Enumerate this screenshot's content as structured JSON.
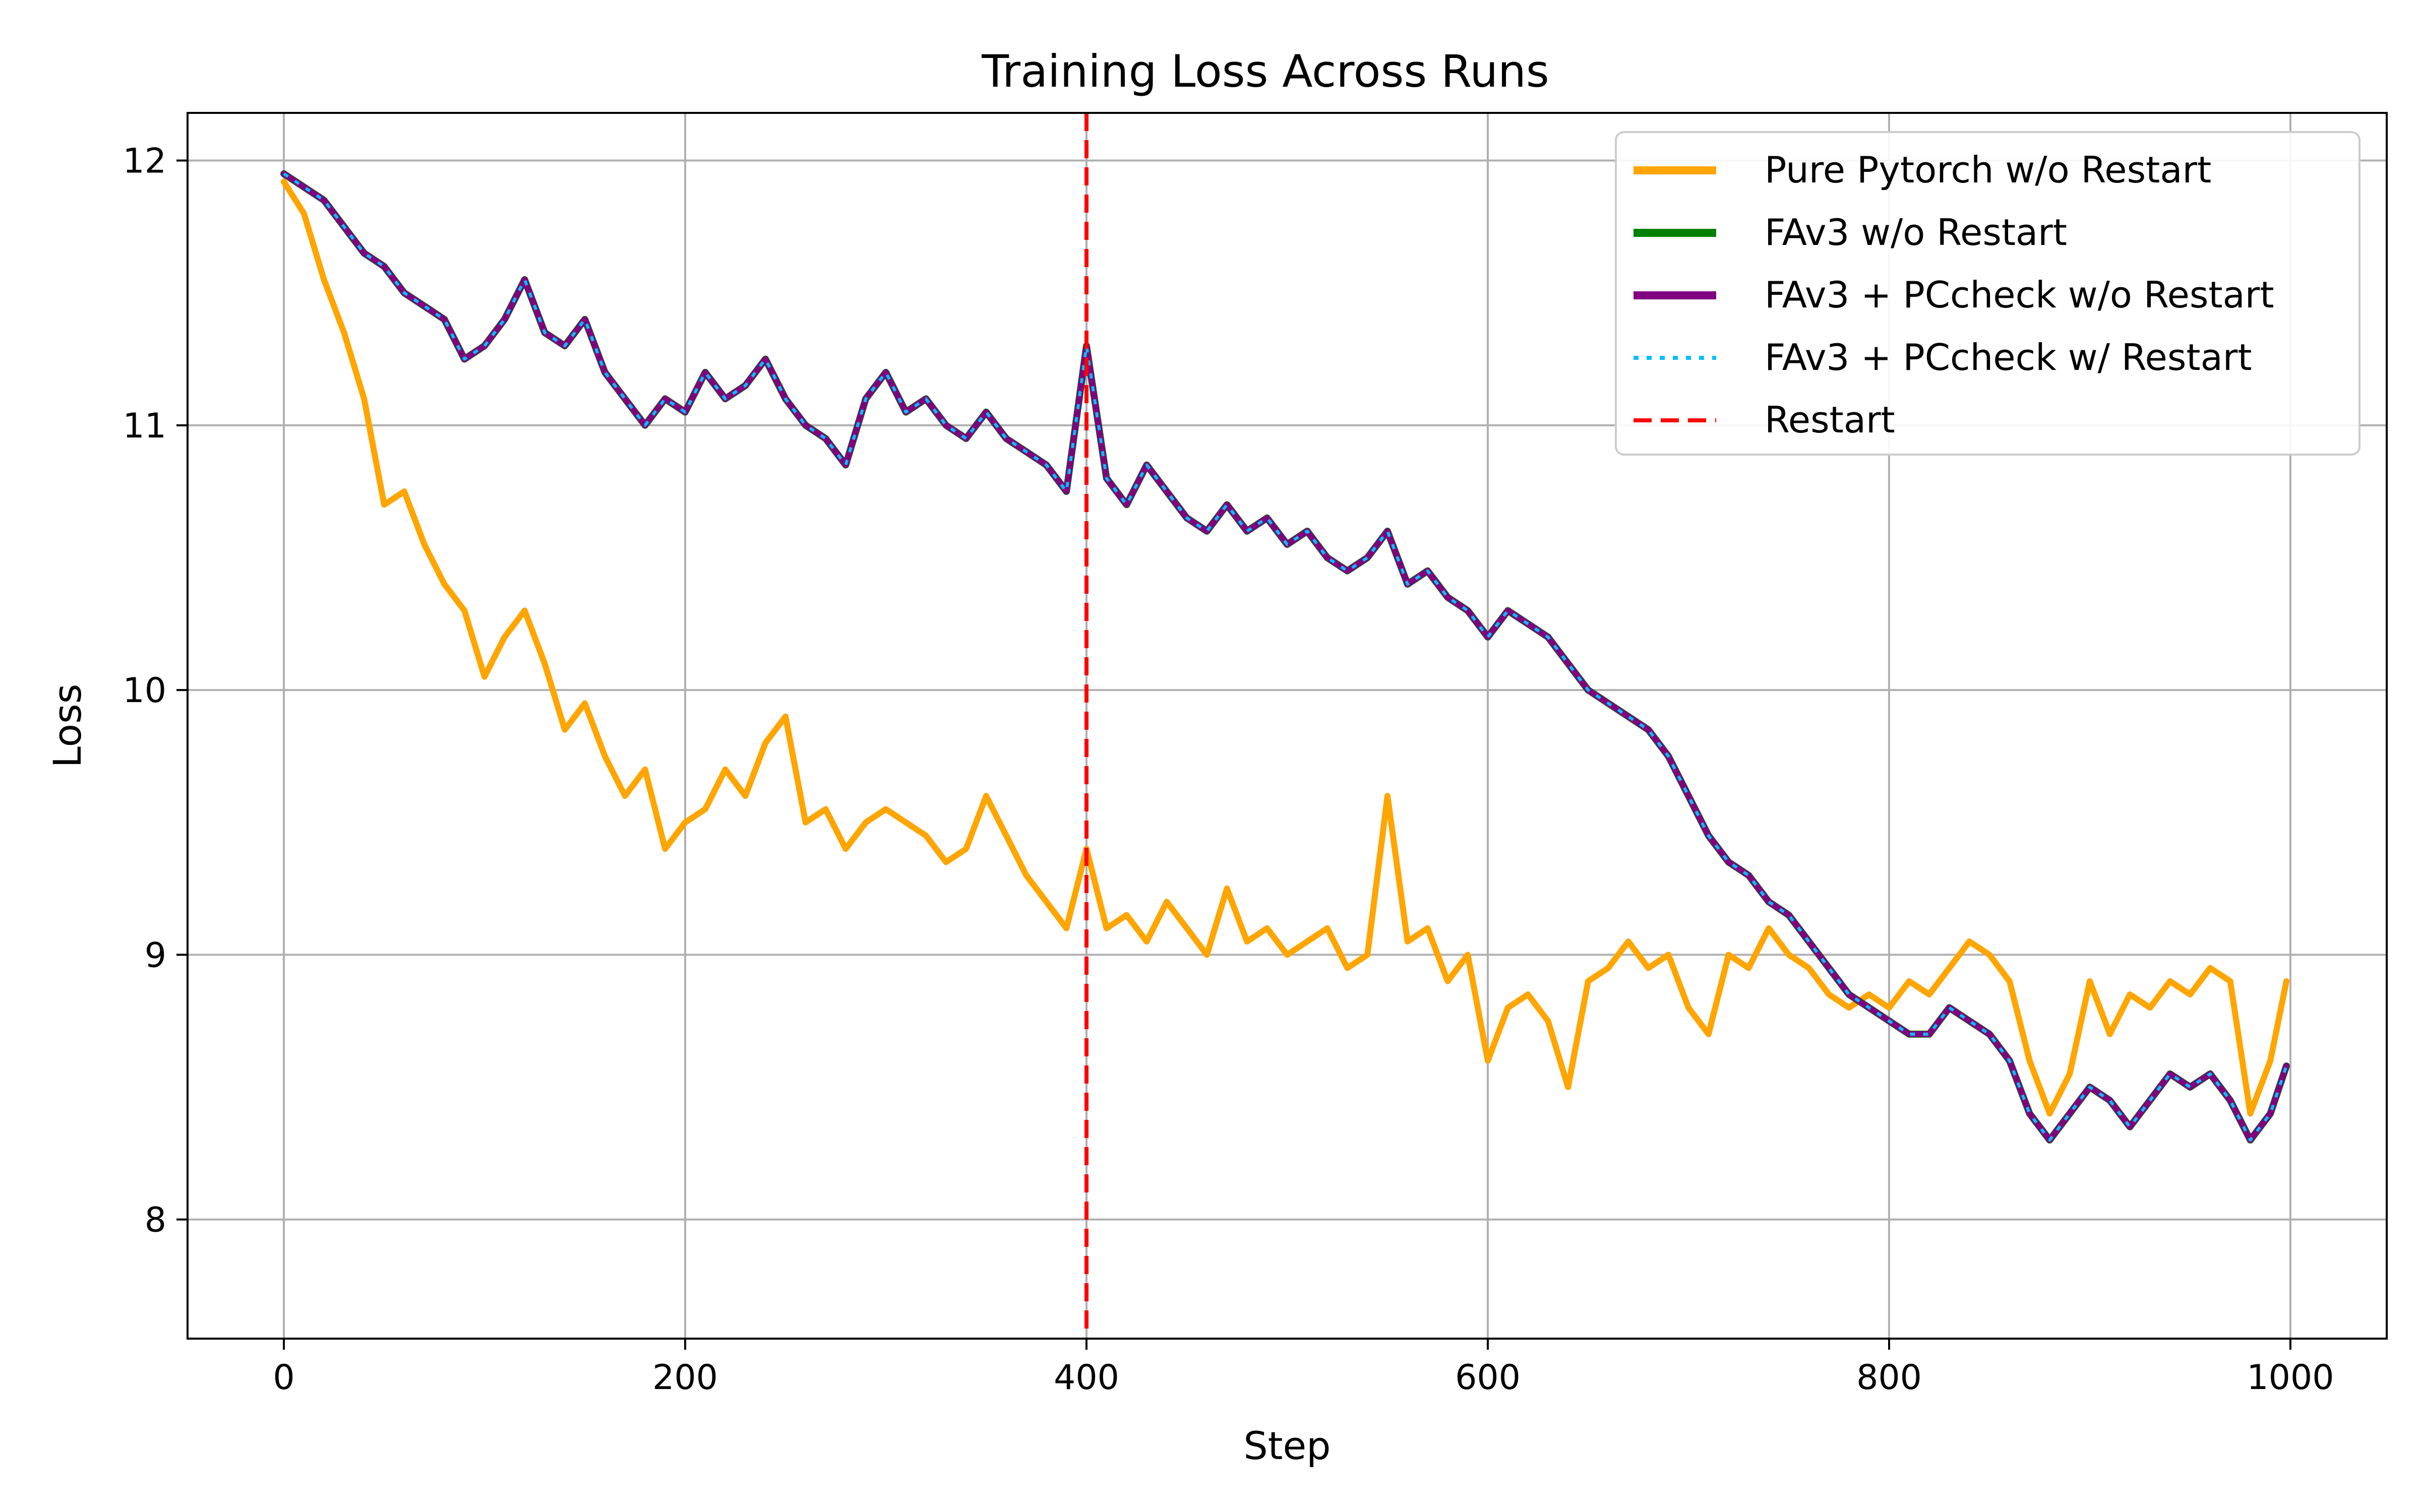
{
  "chart_data": {
    "type": "line",
    "title": "Training Loss Across Runs",
    "xlabel": "Step",
    "ylabel": "Loss",
    "xlim": [
      -48,
      1048
    ],
    "ylim": [
      7.55,
      12.18
    ],
    "xticks": [
      0,
      200,
      400,
      600,
      800,
      1000
    ],
    "yticks": [
      8,
      9,
      10,
      11,
      12
    ],
    "grid": true,
    "legend_position": "upper right",
    "series": [
      {
        "name": "Pure Pytorch w/o Restart",
        "color": "#FFA500",
        "style": "solid",
        "x": [
          0,
          10,
          20,
          30,
          40,
          50,
          60,
          70,
          80,
          90,
          100,
          110,
          120,
          130,
          140,
          150,
          160,
          170,
          180,
          190,
          200,
          210,
          220,
          230,
          240,
          250,
          260,
          270,
          280,
          290,
          300,
          310,
          320,
          330,
          340,
          350,
          360,
          370,
          380,
          390,
          400,
          410,
          420,
          430,
          440,
          450,
          460,
          470,
          480,
          490,
          500,
          510,
          520,
          530,
          540,
          550,
          560,
          570,
          580,
          590,
          600,
          610,
          620,
          630,
          640,
          650,
          660,
          670,
          680,
          690,
          700,
          710,
          720,
          730,
          740,
          750,
          760,
          770,
          780,
          790,
          800,
          810,
          820,
          830,
          840,
          850,
          860,
          870,
          880,
          890,
          900,
          910,
          920,
          930,
          940,
          950,
          960,
          970,
          980,
          990,
          998
        ],
        "y": [
          11.92,
          11.8,
          11.55,
          11.35,
          11.1,
          10.7,
          10.75,
          10.55,
          10.4,
          10.3,
          10.05,
          10.2,
          10.3,
          10.1,
          9.85,
          9.95,
          9.75,
          9.6,
          9.7,
          9.4,
          9.5,
          9.55,
          9.7,
          9.6,
          9.8,
          9.9,
          9.5,
          9.55,
          9.4,
          9.5,
          9.55,
          9.5,
          9.45,
          9.35,
          9.4,
          9.6,
          9.45,
          9.3,
          9.2,
          9.1,
          9.4,
          9.1,
          9.15,
          9.05,
          9.2,
          9.1,
          9.0,
          9.25,
          9.05,
          9.1,
          9.0,
          9.05,
          9.1,
          8.95,
          9.0,
          9.6,
          9.05,
          9.1,
          8.9,
          9.0,
          8.6,
          8.8,
          8.85,
          8.75,
          8.5,
          8.9,
          8.95,
          9.05,
          8.95,
          9.0,
          8.8,
          8.7,
          9.0,
          8.95,
          9.1,
          9.0,
          8.95,
          8.85,
          8.8,
          8.85,
          8.8,
          8.9,
          8.85,
          8.95,
          9.05,
          9.0,
          8.9,
          8.6,
          8.4,
          8.55,
          8.9,
          8.7,
          8.85,
          8.8,
          8.9,
          8.85,
          8.95,
          8.9,
          8.4,
          8.6,
          8.9
        ]
      },
      {
        "name": "FAv3 w/o Restart",
        "color": "#008000",
        "style": "solid",
        "x": [
          0,
          10,
          20,
          30,
          40,
          50,
          60,
          70,
          80,
          90,
          100,
          110,
          120,
          130,
          140,
          150,
          160,
          170,
          180,
          190,
          200,
          210,
          220,
          230,
          240,
          250,
          260,
          270,
          280,
          290,
          300,
          310,
          320,
          330,
          340,
          350,
          360,
          370,
          380,
          390,
          400,
          410,
          420,
          430,
          440,
          450,
          460,
          470,
          480,
          490,
          500,
          510,
          520,
          530,
          540,
          550,
          560,
          570,
          580,
          590,
          600,
          610,
          620,
          630,
          640,
          650,
          660,
          670,
          680,
          690,
          700,
          710,
          720,
          730,
          740,
          750,
          760,
          770,
          780,
          790,
          800,
          810,
          820,
          830,
          840,
          850,
          860,
          870,
          880,
          890,
          900,
          910,
          920,
          930,
          940,
          950,
          960,
          970,
          980,
          990,
          998
        ],
        "y": [
          11.95,
          11.9,
          11.85,
          11.75,
          11.65,
          11.6,
          11.5,
          11.45,
          11.4,
          11.25,
          11.3,
          11.4,
          11.55,
          11.35,
          11.3,
          11.4,
          11.2,
          11.1,
          11.0,
          11.1,
          11.05,
          11.2,
          11.1,
          11.15,
          11.25,
          11.1,
          11.0,
          10.95,
          10.85,
          11.1,
          11.2,
          11.05,
          11.1,
          11.0,
          10.95,
          11.05,
          10.95,
          10.9,
          10.85,
          10.75,
          11.3,
          10.8,
          10.7,
          10.85,
          10.75,
          10.65,
          10.6,
          10.7,
          10.6,
          10.65,
          10.55,
          10.6,
          10.5,
          10.45,
          10.5,
          10.6,
          10.4,
          10.45,
          10.35,
          10.3,
          10.2,
          10.3,
          10.25,
          10.2,
          10.1,
          10.0,
          9.95,
          9.9,
          9.85,
          9.75,
          9.6,
          9.45,
          9.35,
          9.3,
          9.2,
          9.15,
          9.05,
          8.95,
          8.85,
          8.8,
          8.75,
          8.7,
          8.7,
          8.8,
          8.75,
          8.7,
          8.6,
          8.4,
          8.3,
          8.4,
          8.5,
          8.45,
          8.35,
          8.45,
          8.55,
          8.5,
          8.55,
          8.45,
          8.3,
          8.4,
          8.58
        ]
      },
      {
        "name": "FAv3 + PCcheck w/o Restart",
        "color": "#800080",
        "style": "solid",
        "x": [
          0,
          10,
          20,
          30,
          40,
          50,
          60,
          70,
          80,
          90,
          100,
          110,
          120,
          130,
          140,
          150,
          160,
          170,
          180,
          190,
          200,
          210,
          220,
          230,
          240,
          250,
          260,
          270,
          280,
          290,
          300,
          310,
          320,
          330,
          340,
          350,
          360,
          370,
          380,
          390,
          400,
          410,
          420,
          430,
          440,
          450,
          460,
          470,
          480,
          490,
          500,
          510,
          520,
          530,
          540,
          550,
          560,
          570,
          580,
          590,
          600,
          610,
          620,
          630,
          640,
          650,
          660,
          670,
          680,
          690,
          700,
          710,
          720,
          730,
          740,
          750,
          760,
          770,
          780,
          790,
          800,
          810,
          820,
          830,
          840,
          850,
          860,
          870,
          880,
          890,
          900,
          910,
          920,
          930,
          940,
          950,
          960,
          970,
          980,
          990,
          998
        ],
        "y": [
          11.95,
          11.9,
          11.85,
          11.75,
          11.65,
          11.6,
          11.5,
          11.45,
          11.4,
          11.25,
          11.3,
          11.4,
          11.55,
          11.35,
          11.3,
          11.4,
          11.2,
          11.1,
          11.0,
          11.1,
          11.05,
          11.2,
          11.1,
          11.15,
          11.25,
          11.1,
          11.0,
          10.95,
          10.85,
          11.1,
          11.2,
          11.05,
          11.1,
          11.0,
          10.95,
          11.05,
          10.95,
          10.9,
          10.85,
          10.75,
          11.3,
          10.8,
          10.7,
          10.85,
          10.75,
          10.65,
          10.6,
          10.7,
          10.6,
          10.65,
          10.55,
          10.6,
          10.5,
          10.45,
          10.5,
          10.6,
          10.4,
          10.45,
          10.35,
          10.3,
          10.2,
          10.3,
          10.25,
          10.2,
          10.1,
          10.0,
          9.95,
          9.9,
          9.85,
          9.75,
          9.6,
          9.45,
          9.35,
          9.3,
          9.2,
          9.15,
          9.05,
          8.95,
          8.85,
          8.8,
          8.75,
          8.7,
          8.7,
          8.8,
          8.75,
          8.7,
          8.6,
          8.4,
          8.3,
          8.4,
          8.5,
          8.45,
          8.35,
          8.45,
          8.55,
          8.5,
          8.55,
          8.45,
          8.3,
          8.4,
          8.58
        ]
      },
      {
        "name": "FAv3 + PCcheck w/ Restart",
        "color": "#00BFFF",
        "style": "dotted",
        "x": [
          0,
          10,
          20,
          30,
          40,
          50,
          60,
          70,
          80,
          90,
          100,
          110,
          120,
          130,
          140,
          150,
          160,
          170,
          180,
          190,
          200,
          210,
          220,
          230,
          240,
          250,
          260,
          270,
          280,
          290,
          300,
          310,
          320,
          330,
          340,
          350,
          360,
          370,
          380,
          390,
          400,
          410,
          420,
          430,
          440,
          450,
          460,
          470,
          480,
          490,
          500,
          510,
          520,
          530,
          540,
          550,
          560,
          570,
          580,
          590,
          600,
          610,
          620,
          630,
          640,
          650,
          660,
          670,
          680,
          690,
          700,
          710,
          720,
          730,
          740,
          750,
          760,
          770,
          780,
          790,
          800,
          810,
          820,
          830,
          840,
          850,
          860,
          870,
          880,
          890,
          900,
          910,
          920,
          930,
          940,
          950,
          960,
          970,
          980,
          990,
          998
        ],
        "y": [
          11.95,
          11.9,
          11.85,
          11.75,
          11.65,
          11.6,
          11.5,
          11.45,
          11.4,
          11.25,
          11.3,
          11.4,
          11.55,
          11.35,
          11.3,
          11.4,
          11.2,
          11.1,
          11.0,
          11.1,
          11.05,
          11.2,
          11.1,
          11.15,
          11.25,
          11.1,
          11.0,
          10.95,
          10.85,
          11.1,
          11.2,
          11.05,
          11.1,
          11.0,
          10.95,
          11.05,
          10.95,
          10.9,
          10.85,
          10.75,
          11.3,
          10.8,
          10.7,
          10.85,
          10.75,
          10.65,
          10.6,
          10.7,
          10.6,
          10.65,
          10.55,
          10.6,
          10.5,
          10.45,
          10.5,
          10.6,
          10.4,
          10.45,
          10.35,
          10.3,
          10.2,
          10.3,
          10.25,
          10.2,
          10.1,
          10.0,
          9.95,
          9.9,
          9.85,
          9.75,
          9.6,
          9.45,
          9.35,
          9.3,
          9.2,
          9.15,
          9.05,
          8.95,
          8.85,
          8.8,
          8.75,
          8.7,
          8.7,
          8.8,
          8.75,
          8.7,
          8.6,
          8.4,
          8.3,
          8.4,
          8.5,
          8.45,
          8.35,
          8.45,
          8.55,
          8.5,
          8.55,
          8.45,
          8.3,
          8.4,
          8.58
        ]
      }
    ],
    "restart": {
      "name": "Restart",
      "x": 400,
      "color": "#FF0000",
      "style": "dashed"
    }
  }
}
